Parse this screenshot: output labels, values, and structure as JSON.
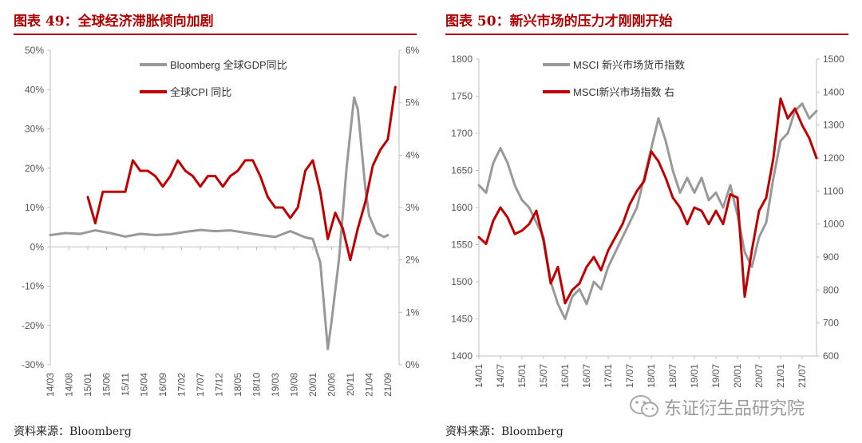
{
  "colors": {
    "gray": "#999999",
    "red": "#c00000",
    "title_red": "#b00000",
    "axis": "#bfbfbf",
    "text": "#555555"
  },
  "left": {
    "title": "图表 49：全球经济滞胀倾向加剧",
    "source": "资料来源：Bloomberg"
  },
  "right": {
    "title": "图表 50：新兴市场的压力才刚刚开始",
    "source": "资料来源：Bloomberg"
  },
  "watermark": {
    "text": "东证衍生品研究院",
    "icon": "wechat-icon"
  },
  "chart_data": [
    {
      "type": "line",
      "y_left": {
        "range": [
          -30,
          50
        ],
        "ticks": [
          -30,
          -20,
          -10,
          0,
          10,
          20,
          30,
          40,
          50
        ],
        "tick_labels": [
          "-30%",
          "-20%",
          "-10%",
          "0%",
          "10%",
          "20%",
          "30%",
          "40%",
          "50%"
        ]
      },
      "y_right": {
        "range": [
          0,
          6
        ],
        "ticks": [
          0,
          1,
          2,
          3,
          4,
          5,
          6
        ],
        "tick_labels": [
          "0%",
          "1%",
          "2%",
          "3%",
          "4%",
          "5%",
          "6%"
        ]
      },
      "x_range": [
        "2014-03",
        "2021-12"
      ],
      "x_ticks": [
        "14/03",
        "14/08",
        "15/01",
        "15/06",
        "15/11",
        "16/04",
        "16/09",
        "17/02",
        "17/07",
        "17/12",
        "18/05",
        "18/10",
        "19/03",
        "19/08",
        "20/01",
        "20/06",
        "20/11",
        "21/04",
        "21/09"
      ],
      "legend": "top-center",
      "series": [
        {
          "name": "Bloomberg 全球GDP同比",
          "axis": "left",
          "color": "#999999",
          "x": [
            "2014-03",
            "2014-07",
            "2014-11",
            "2015-03",
            "2015-07",
            "2015-11",
            "2016-03",
            "2016-07",
            "2016-11",
            "2017-03",
            "2017-07",
            "2017-11",
            "2018-03",
            "2018-07",
            "2018-11",
            "2019-03",
            "2019-07",
            "2019-11",
            "2020-01",
            "2020-03",
            "2020-05",
            "2020-06",
            "2020-08",
            "2020-10",
            "2020-12",
            "2021-01",
            "2021-03",
            "2021-04",
            "2021-06",
            "2021-08",
            "2021-09"
          ],
          "values": [
            3.0,
            3.5,
            3.3,
            4.2,
            3.5,
            2.6,
            3.3,
            3.0,
            3.2,
            3.8,
            4.3,
            4.0,
            4.2,
            3.6,
            3.0,
            2.5,
            4.0,
            2.4,
            2.0,
            -4.0,
            -26.0,
            -19.0,
            -3.0,
            20.0,
            38.0,
            35.0,
            15.0,
            8.0,
            3.5,
            2.5,
            3.0
          ]
        },
        {
          "name": "全球CPI 同比",
          "axis": "right",
          "color": "#c00000",
          "x": [
            "2015-01",
            "2015-03",
            "2015-05",
            "2015-07",
            "2015-09",
            "2015-11",
            "2016-01",
            "2016-03",
            "2016-05",
            "2016-07",
            "2016-09",
            "2016-11",
            "2017-01",
            "2017-03",
            "2017-05",
            "2017-07",
            "2017-09",
            "2017-11",
            "2018-01",
            "2018-03",
            "2018-05",
            "2018-07",
            "2018-09",
            "2018-11",
            "2019-01",
            "2019-03",
            "2019-05",
            "2019-07",
            "2019-09",
            "2019-11",
            "2020-01",
            "2020-03",
            "2020-05",
            "2020-07",
            "2020-09",
            "2020-11",
            "2021-01",
            "2021-03",
            "2021-05",
            "2021-07",
            "2021-09",
            "2021-11"
          ],
          "values": [
            3.2,
            2.7,
            3.3,
            3.3,
            3.3,
            3.3,
            3.9,
            3.7,
            3.7,
            3.6,
            3.4,
            3.6,
            3.9,
            3.7,
            3.6,
            3.4,
            3.6,
            3.6,
            3.4,
            3.6,
            3.7,
            3.9,
            3.9,
            3.6,
            3.2,
            3.0,
            3.0,
            2.8,
            3.0,
            3.7,
            3.9,
            3.3,
            2.4,
            2.9,
            2.6,
            2.0,
            2.6,
            3.1,
            3.8,
            4.1,
            4.3,
            5.3
          ]
        }
      ]
    },
    {
      "type": "line",
      "y_left": {
        "range": [
          1400,
          1800
        ],
        "ticks": [
          1400,
          1450,
          1500,
          1550,
          1600,
          1650,
          1700,
          1750,
          1800
        ],
        "tick_labels": [
          "1400",
          "1450",
          "1500",
          "1550",
          "1600",
          "1650",
          "1700",
          "1750",
          "1800"
        ]
      },
      "y_right": {
        "range": [
          600,
          1500
        ],
        "ticks": [
          600,
          700,
          800,
          900,
          1000,
          1100,
          1200,
          1300,
          1400,
          1500
        ],
        "tick_labels": [
          "600",
          "700",
          "800",
          "900",
          "1000",
          "1100",
          "1200",
          "1300",
          "1400",
          "1500"
        ]
      },
      "x_range": [
        "2014-01",
        "2021-11"
      ],
      "x_ticks": [
        "14/01",
        "14/07",
        "15/01",
        "15/07",
        "16/01",
        "16/07",
        "17/01",
        "17/07",
        "18/01",
        "18/07",
        "19/01",
        "19/07",
        "20/01",
        "20/07",
        "21/01",
        "21/07"
      ],
      "legend": "top-left",
      "series": [
        {
          "name": "MSCI 新兴市场货币指数",
          "axis": "left",
          "color": "#999999",
          "x": [
            "2014-01",
            "2014-03",
            "2014-05",
            "2014-07",
            "2014-09",
            "2014-11",
            "2015-01",
            "2015-03",
            "2015-05",
            "2015-07",
            "2015-09",
            "2015-11",
            "2016-01",
            "2016-03",
            "2016-05",
            "2016-07",
            "2016-09",
            "2016-11",
            "2017-01",
            "2017-03",
            "2017-05",
            "2017-07",
            "2017-09",
            "2017-11",
            "2018-01",
            "2018-03",
            "2018-05",
            "2018-07",
            "2018-09",
            "2018-11",
            "2019-01",
            "2019-03",
            "2019-05",
            "2019-07",
            "2019-09",
            "2019-11",
            "2020-01",
            "2020-03",
            "2020-05",
            "2020-07",
            "2020-09",
            "2020-11",
            "2021-01",
            "2021-03",
            "2021-05",
            "2021-07",
            "2021-09",
            "2021-11"
          ],
          "values": [
            1630,
            1620,
            1660,
            1680,
            1660,
            1630,
            1610,
            1600,
            1580,
            1560,
            1500,
            1470,
            1450,
            1480,
            1490,
            1470,
            1500,
            1490,
            1520,
            1540,
            1560,
            1580,
            1600,
            1640,
            1680,
            1720,
            1690,
            1650,
            1620,
            1640,
            1620,
            1640,
            1610,
            1620,
            1600,
            1630,
            1590,
            1540,
            1520,
            1560,
            1580,
            1640,
            1690,
            1700,
            1730,
            1740,
            1720,
            1730
          ]
        },
        {
          "name": "MSCI新兴市场指数 右",
          "axis": "right",
          "color": "#c00000",
          "x": [
            "2014-01",
            "2014-03",
            "2014-05",
            "2014-07",
            "2014-09",
            "2014-11",
            "2015-01",
            "2015-03",
            "2015-05",
            "2015-07",
            "2015-09",
            "2015-11",
            "2016-01",
            "2016-03",
            "2016-05",
            "2016-07",
            "2016-09",
            "2016-11",
            "2017-01",
            "2017-03",
            "2017-05",
            "2017-07",
            "2017-09",
            "2017-11",
            "2018-01",
            "2018-03",
            "2018-05",
            "2018-07",
            "2018-09",
            "2018-11",
            "2019-01",
            "2019-03",
            "2019-05",
            "2019-07",
            "2019-09",
            "2019-11",
            "2020-01",
            "2020-03",
            "2020-05",
            "2020-07",
            "2020-09",
            "2020-11",
            "2021-01",
            "2021-03",
            "2021-05",
            "2021-07",
            "2021-09",
            "2021-11"
          ],
          "values": [
            960,
            940,
            1010,
            1050,
            1020,
            970,
            980,
            1000,
            1040,
            950,
            820,
            870,
            760,
            800,
            820,
            870,
            900,
            860,
            920,
            960,
            1000,
            1060,
            1100,
            1130,
            1220,
            1190,
            1140,
            1080,
            1050,
            1000,
            1050,
            1040,
            1000,
            1040,
            1000,
            1090,
            1080,
            780,
            920,
            1040,
            1080,
            1200,
            1380,
            1320,
            1350,
            1300,
            1260,
            1200
          ]
        }
      ]
    }
  ]
}
